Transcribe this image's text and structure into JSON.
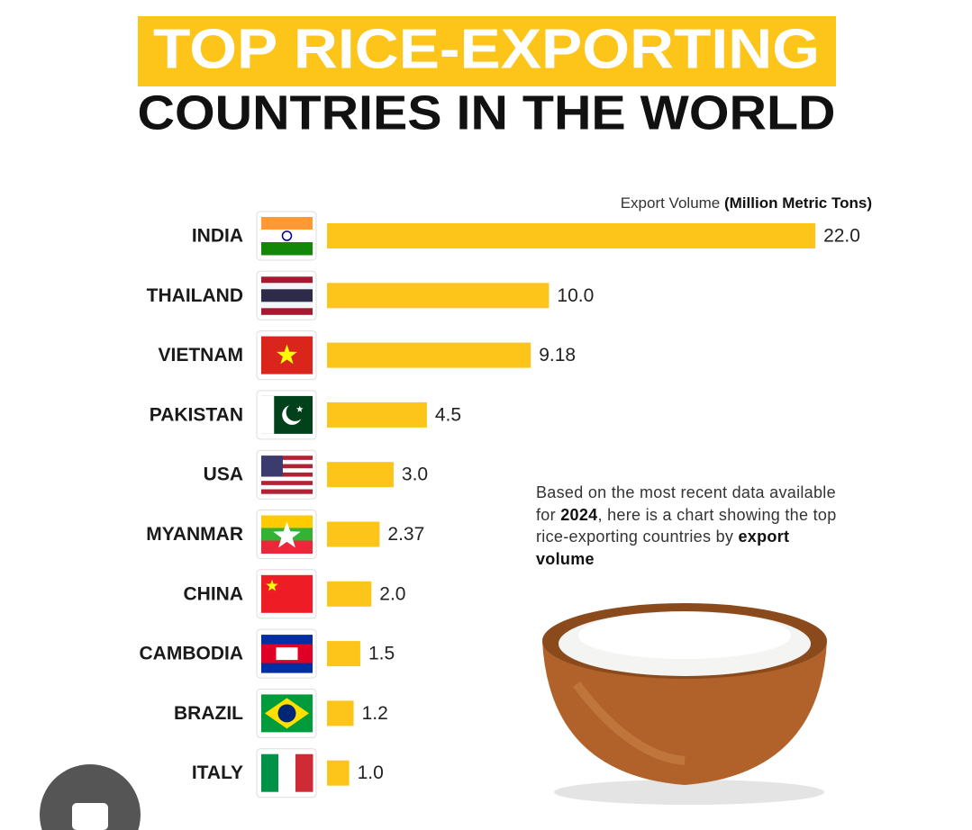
{
  "chart_data": {
    "type": "bar",
    "title": [
      "TOP RICE-EXPORTING",
      "COUNTRIES IN THE WORLD"
    ],
    "axis_label": [
      "Export Volume ",
      "(Million Metric Tons)"
    ],
    "note": [
      "Based on the most recent data available for ",
      "2024",
      ", here is a chart showing the top rice-exporting countries by ",
      "export volume"
    ],
    "categories": [
      "INDIA",
      "THAILAND",
      "VIETNAM",
      "PAKISTAN",
      "USA",
      "MYANMAR",
      "CHINA",
      "CAMBODIA",
      "BRAZIL",
      "ITALY"
    ],
    "values": [
      22.0,
      10.0,
      9.18,
      4.5,
      3.0,
      2.37,
      2.0,
      1.5,
      1.2,
      1.0
    ],
    "value_labels": [
      "22.0",
      "10.0",
      "9.18",
      "4.5",
      "3.0",
      "2.37",
      "2.0",
      "1.5",
      "1.2",
      "1.0"
    ],
    "color": "#fdc419"
  }
}
